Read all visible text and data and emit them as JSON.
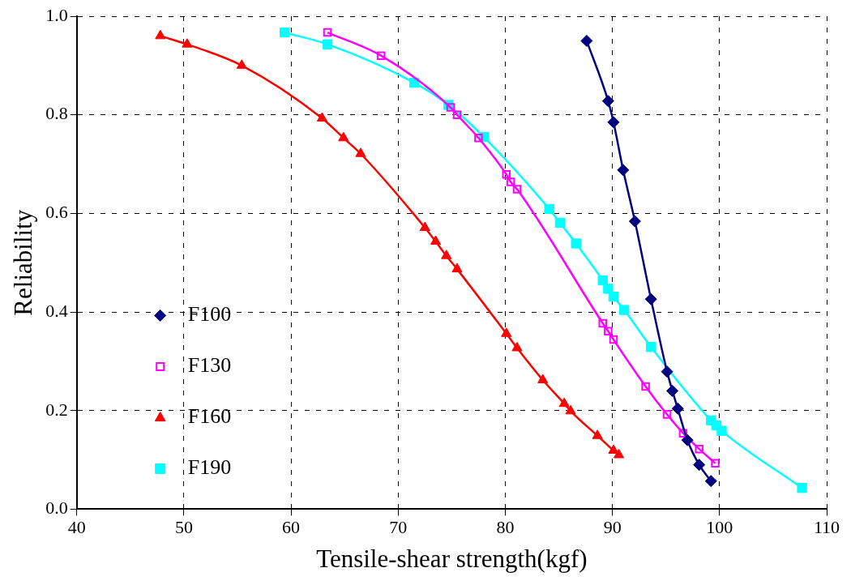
{
  "chart_data": {
    "type": "line",
    "xlabel": "Tensile-shear strength(kgf)",
    "ylabel": "Reliability",
    "xlim": [
      40,
      110
    ],
    "xticks": [
      40,
      50,
      60,
      70,
      80,
      90,
      100,
      110
    ],
    "ylim": [
      0,
      1
    ],
    "yticks": [
      {
        "value": 0,
        "label": "0.0"
      },
      {
        "value": 0.2,
        "label": "0.2"
      },
      {
        "value": 0.4,
        "label": "0.4"
      },
      {
        "value": 0.6,
        "label": "0.6"
      },
      {
        "value": 0.8,
        "label": "0.8"
      },
      {
        "value": 1,
        "label": "1.0"
      }
    ],
    "grid": true,
    "legend": "bottom left",
    "series": [
      {
        "name": "F100",
        "color": "#000080",
        "marker": "diamond",
        "x": [
          87.6,
          89.6,
          90.1,
          91.0,
          92.1,
          93.6,
          95.1,
          95.6,
          96.1,
          97.0,
          98.1,
          99.2
        ],
        "values": [
          0.95,
          0.828,
          0.785,
          0.688,
          0.584,
          0.426,
          0.279,
          0.24,
          0.204,
          0.14,
          0.09,
          0.057
        ]
      },
      {
        "name": "F130",
        "color": "#ff00ff",
        "marker": "square",
        "x": [
          63.4,
          68.4,
          74.9,
          75.5,
          77.5,
          80.1,
          80.5,
          81.1,
          89.1,
          89.6,
          90.1,
          93.1,
          95.1,
          96.6,
          98.1,
          99.6
        ],
        "values": [
          0.967,
          0.92,
          0.815,
          0.8,
          0.753,
          0.679,
          0.664,
          0.649,
          0.377,
          0.361,
          0.344,
          0.249,
          0.192,
          0.154,
          0.122,
          0.093
        ]
      },
      {
        "name": "F160",
        "color": "#ff0000",
        "marker": "triangle",
        "x": [
          47.8,
          50.3,
          55.4,
          62.9,
          64.9,
          66.5,
          72.5,
          73.5,
          74.5,
          75.5,
          80.1,
          81.1,
          83.5,
          85.5,
          86.1,
          88.6,
          90.1,
          90.6
        ],
        "values": [
          0.96,
          0.943,
          0.9,
          0.793,
          0.753,
          0.721,
          0.571,
          0.543,
          0.514,
          0.487,
          0.356,
          0.327,
          0.262,
          0.214,
          0.199,
          0.149,
          0.119,
          0.11
        ]
      },
      {
        "name": "F190",
        "color": "#00ffff",
        "marker": "square",
        "x": [
          59.4,
          63.4,
          71.5,
          74.7,
          78.0,
          84.1,
          85.1,
          86.6,
          89.1,
          89.6,
          90.1,
          91.1,
          93.6,
          99.2,
          99.7,
          100.2,
          107.7
        ],
        "values": [
          0.967,
          0.943,
          0.865,
          0.82,
          0.755,
          0.609,
          0.581,
          0.539,
          0.464,
          0.447,
          0.431,
          0.404,
          0.329,
          0.18,
          0.17,
          0.159,
          0.043
        ]
      }
    ]
  }
}
